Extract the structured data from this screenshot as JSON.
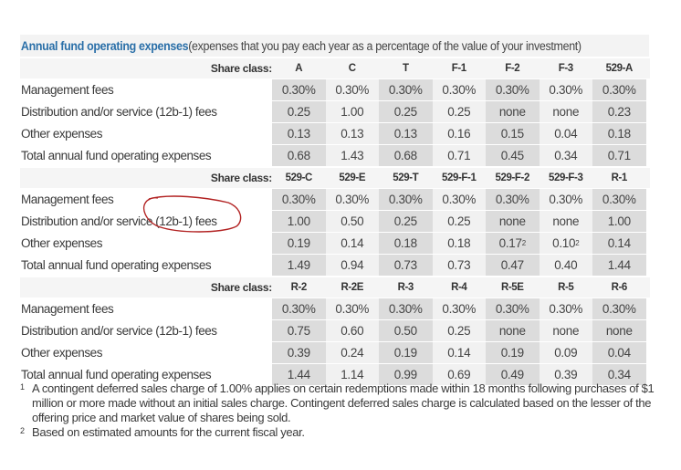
{
  "title": {
    "bold": "Annual fund operating expenses",
    "rest": " (expenses that you pay each year as a percentage of the value of your investment)"
  },
  "share_class_label": "Share class:",
  "row_labels": [
    "Management fees",
    "Distribution and/or service (12b-1) fees",
    "Other expenses",
    "Total annual fund operating expenses"
  ],
  "sections": [
    {
      "classes": [
        "A",
        "C",
        "T",
        "F-1",
        "F-2",
        "F-3",
        "529-A"
      ],
      "rows": [
        [
          "0.30%",
          "0.30%",
          "0.30%",
          "0.30%",
          "0.30%",
          "0.30%",
          "0.30%"
        ],
        [
          "0.25",
          "1.00",
          "0.25",
          "0.25",
          "none",
          "none",
          "0.23"
        ],
        [
          "0.13",
          "0.13",
          "0.13",
          "0.16",
          "0.15",
          "0.04",
          "0.18"
        ],
        [
          "0.68",
          "1.43",
          "0.68",
          "0.71",
          "0.45",
          "0.34",
          "0.71"
        ]
      ]
    },
    {
      "classes": [
        "529-C",
        "529-E",
        "529-T",
        "529-F-1",
        "529-F-2",
        "529-F-3",
        "R-1"
      ],
      "rows": [
        [
          "0.30%",
          "0.30%",
          "0.30%",
          "0.30%",
          "0.30%",
          "0.30%",
          "0.30%"
        ],
        [
          "1.00",
          "0.50",
          "0.25",
          "0.25",
          "none",
          "none",
          "1.00"
        ],
        [
          "0.19",
          "0.14",
          "0.18",
          "0.18",
          "0.17",
          "0.10",
          "0.14"
        ],
        [
          "1.49",
          "0.94",
          "0.73",
          "0.73",
          "0.47",
          "0.40",
          "1.44"
        ]
      ],
      "superscripts": {
        "2_4": "2",
        "2_5": "2"
      }
    },
    {
      "classes": [
        "R-2",
        "R-2E",
        "R-3",
        "R-4",
        "R-5E",
        "R-5",
        "R-6"
      ],
      "rows": [
        [
          "0.30%",
          "0.30%",
          "0.30%",
          "0.30%",
          "0.30%",
          "0.30%",
          "0.30%"
        ],
        [
          "0.75",
          "0.60",
          "0.50",
          "0.25",
          "none",
          "none",
          "none"
        ],
        [
          "0.39",
          "0.24",
          "0.19",
          "0.14",
          "0.19",
          "0.09",
          "0.04"
        ],
        [
          "1.44",
          "1.14",
          "0.99",
          "0.69",
          "0.49",
          "0.39",
          "0.34"
        ]
      ]
    }
  ],
  "footnotes": [
    {
      "mark": "1",
      "text": "A contingent deferred sales charge of 1.00% applies on certain redemptions made within 18 months following purchases of $1 million or more made without an initial sales charge. Contingent deferred sales charge is calculated based on the lesser of the offering price and market value of shares being sold."
    },
    {
      "mark": "2",
      "text": "Based on estimated amounts for the current fiscal year."
    }
  ],
  "annotation": {
    "color": "#b22222",
    "target": "Distribution and/or service (12b-1) fees"
  }
}
